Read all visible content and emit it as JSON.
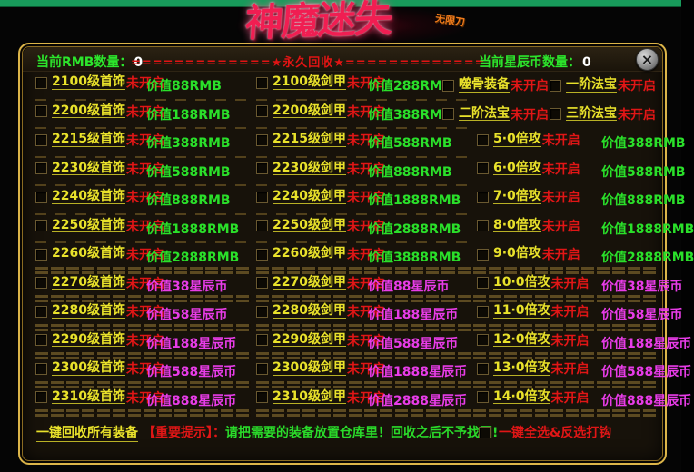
{
  "logo": {
    "title": "神魔迷失",
    "subtitle": "无限刀"
  },
  "header": {
    "rmb_label": "当前RMB数量：",
    "rmb_value": "0",
    "banner": "=============★永久回收★=============",
    "star_label": "当前星辰币数量：",
    "star_value": "0",
    "close_glyph": "×"
  },
  "columns": {
    "col1": {
      "rows": [
        {
          "name": "2100级首饰",
          "status": "未开启",
          "value": "价值88RMB",
          "vtype": "rmb"
        },
        {
          "name": "2200级首饰",
          "status": "未开启",
          "value": "价值188RMB",
          "vtype": "rmb"
        },
        {
          "name": "2215级首饰",
          "status": "未开启",
          "value": "价值388RMB",
          "vtype": "rmb"
        },
        {
          "name": "2230级首饰",
          "status": "未开启",
          "value": "价值588RMB",
          "vtype": "rmb"
        },
        {
          "name": "2240级首饰",
          "status": "未开启",
          "value": "价值888RMB",
          "vtype": "rmb"
        },
        {
          "name": "2250级首饰",
          "status": "未开启",
          "value": "价值1888RMB",
          "vtype": "rmb"
        },
        {
          "name": "2260级首饰",
          "status": "未开启",
          "value": "价值2888RMB",
          "vtype": "rmb"
        },
        {
          "name": "2270级首饰",
          "status": "未开启",
          "value": "价值38星辰币",
          "vtype": "star"
        },
        {
          "name": "2280级首饰",
          "status": "未开启",
          "value": "价值58星辰币",
          "vtype": "star"
        },
        {
          "name": "2290级首饰",
          "status": "未开启",
          "value": "价值188星辰币",
          "vtype": "star"
        },
        {
          "name": "2300级首饰",
          "status": "未开启",
          "value": "价值588星辰币",
          "vtype": "star"
        },
        {
          "name": "2310级首饰",
          "status": "未开启",
          "value": "价值888星辰币",
          "vtype": "star"
        }
      ]
    },
    "col2": {
      "rows": [
        {
          "name": "2100级剑甲",
          "status": "未开启",
          "value": "价值288RMB",
          "vtype": "rmb"
        },
        {
          "name": "2200级剑甲",
          "status": "未开启",
          "value": "价值388RMB",
          "vtype": "rmb"
        },
        {
          "name": "2215级剑甲",
          "status": "未开启",
          "value": "价值588RMB",
          "vtype": "rmb"
        },
        {
          "name": "2230级剑甲",
          "status": "未开启",
          "value": "价值888RMB",
          "vtype": "rmb"
        },
        {
          "name": "2240级剑甲",
          "status": "未开启",
          "value": "价值1888RMB",
          "vtype": "rmb"
        },
        {
          "name": "2250级剑甲",
          "status": "未开启",
          "value": "价值2888RMB",
          "vtype": "rmb"
        },
        {
          "name": "2260级剑甲",
          "status": "未开启",
          "value": "价值3888RMB",
          "vtype": "rmb"
        },
        {
          "name": "2270级剑甲",
          "status": "未开启",
          "value": "价值88星辰币",
          "vtype": "star"
        },
        {
          "name": "2280级剑甲",
          "status": "未开启",
          "value": "价值188星辰币",
          "vtype": "star"
        },
        {
          "name": "2290级剑甲",
          "status": "未开启",
          "value": "价值588星辰币",
          "vtype": "star"
        },
        {
          "name": "2300级剑甲",
          "status": "未开启",
          "value": "价值1888星辰币",
          "vtype": "star"
        },
        {
          "name": "2310级剑甲",
          "status": "未开启",
          "value": "价值2888星辰币",
          "vtype": "star"
        }
      ]
    },
    "col3": {
      "pairs": [
        [
          {
            "name": "噬骨装备",
            "status": "未开启"
          },
          {
            "name": "一阶法宝",
            "status": "未开启"
          }
        ],
        [
          {
            "name": "二阶法宝",
            "status": "未开启"
          },
          {
            "name": "三阶法宝",
            "status": "未开启"
          }
        ]
      ],
      "rows": [
        {
          "name": "5·0倍攻",
          "status": "未开启",
          "value": "价值388RMB",
          "vtype": "rmb"
        },
        {
          "name": "6·0倍攻",
          "status": "未开启",
          "value": "价值588RMB",
          "vtype": "rmb"
        },
        {
          "name": "7·0倍攻",
          "status": "未开启",
          "value": "价值888RMB",
          "vtype": "rmb"
        },
        {
          "name": "8·0倍攻",
          "status": "未开启",
          "value": "价值1888RMB",
          "vtype": "rmb"
        },
        {
          "name": "9·0倍攻",
          "status": "未开启",
          "value": "价值2888RMB",
          "vtype": "rmb"
        },
        {
          "name": "10·0倍攻",
          "status": "未开启",
          "value": "价值38星辰币",
          "vtype": "star"
        },
        {
          "name": "11·0倍攻",
          "status": "未开启",
          "value": "价值58星辰币",
          "vtype": "star"
        },
        {
          "name": "12·0倍攻",
          "status": "未开启",
          "value": "价值188星辰币",
          "vtype": "star"
        },
        {
          "name": "13·0倍攻",
          "status": "未开启",
          "value": "价值588星辰币",
          "vtype": "star"
        },
        {
          "name": "14·0倍攻",
          "status": "未开启",
          "value": "价值888星辰币",
          "vtype": "star"
        }
      ]
    }
  },
  "footer": {
    "recycle_all": "一键回收所有装备",
    "notice_label": "【重要提示】：",
    "notice_text": "请把需要的装备放置仓库里！回收之后不予找回!",
    "select_all": "一键全选&反选打钩"
  },
  "colors": {
    "panel_border_gold": "#dcb549",
    "name_yellow": "#e9e22b",
    "status_red": "#e01616",
    "value_green": "#2ae02a",
    "value_magenta": "#e83ce8",
    "header_green": "#2ce52c",
    "banner_red": "#e11414",
    "top_strip_green": "#189b5b"
  }
}
